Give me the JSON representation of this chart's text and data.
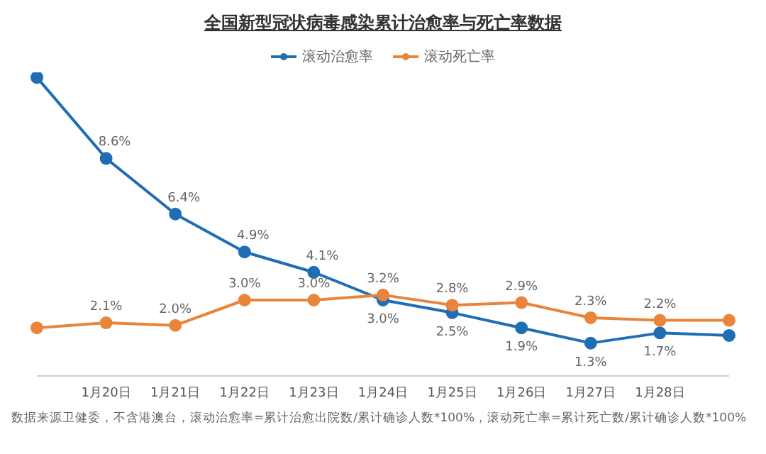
{
  "chart_data": {
    "type": "line",
    "title": "全国新型冠状病毒感染累计治愈率与死亡率数据",
    "categories": [
      null,
      "1月20日",
      "1月21日",
      "1月22日",
      "1月23日",
      "1月24日",
      "1月25日",
      "1月26日",
      "1月27日",
      "1月28日",
      null
    ],
    "series": [
      {
        "name": "滚动治愈率",
        "color": "#1f6eb4",
        "values": [
          11.8,
          8.6,
          6.4,
          4.9,
          4.1,
          3.0,
          2.5,
          1.9,
          1.3,
          1.7,
          1.6
        ],
        "value_labels": [
          null,
          "8.6%",
          "6.4%",
          "4.9%",
          "4.1%",
          "3.0%",
          "2.5%",
          "1.9%",
          "1.3%",
          "1.7%",
          null
        ]
      },
      {
        "name": "滚动死亡率",
        "color": "#e9853a",
        "values": [
          1.9,
          2.1,
          2.0,
          3.0,
          3.0,
          3.2,
          2.8,
          2.9,
          2.3,
          2.2,
          2.2
        ],
        "value_labels": [
          null,
          "2.1%",
          "2.0%",
          "3.0%",
          "3.0%",
          "3.2%",
          "2.8%",
          "2.9%",
          "2.3%",
          "2.2%",
          null
        ]
      }
    ],
    "grid": false,
    "legend": "top",
    "marker": "circle",
    "annotations": [
      "数据来源卫健委，不含港澳台，滚动治愈率=累计治愈出院数/累计确诊人数*100%，滚动死亡率=累计死亡数/累计确诊人数*100%"
    ]
  }
}
